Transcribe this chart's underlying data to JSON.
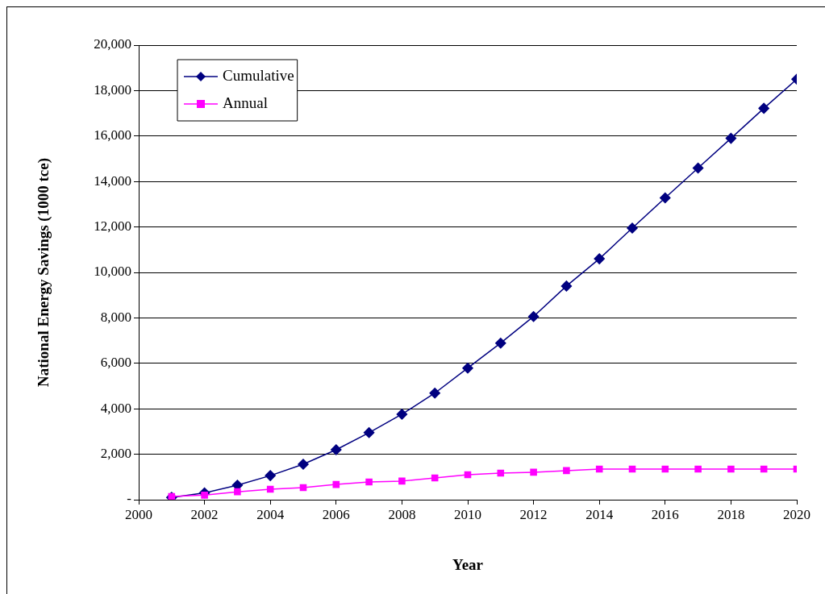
{
  "chart_data": {
    "type": "line",
    "xlabel": "Year",
    "ylabel": "National Energy Savings (1000 tce)",
    "x": [
      2001,
      2002,
      2003,
      2004,
      2005,
      2006,
      2007,
      2008,
      2009,
      2010,
      2011,
      2012,
      2013,
      2014,
      2015,
      2016,
      2017,
      2018,
      2019,
      2020
    ],
    "series": [
      {
        "name": "Cumulative",
        "color": "#000080",
        "marker": "diamond",
        "values": [
          100,
          300,
          640,
          1060,
          1560,
          2200,
          2950,
          3760,
          4690,
          5790,
          6890,
          8060,
          9400,
          10600,
          11950,
          13280,
          14590,
          15900,
          17220,
          18500
        ]
      },
      {
        "name": "Annual",
        "color": "#ff00ff",
        "marker": "square",
        "values": [
          140,
          200,
          350,
          460,
          530,
          670,
          780,
          820,
          960,
          1100,
          1170,
          1210,
          1280,
          1350,
          1350,
          1350,
          1350,
          1350,
          1350,
          1350
        ]
      }
    ],
    "xlim": [
      2000,
      2020
    ],
    "xticks": [
      2000,
      2002,
      2004,
      2006,
      2008,
      2010,
      2012,
      2014,
      2016,
      2018,
      2020
    ],
    "ylim": [
      0,
      20000
    ],
    "yticks": [
      {
        "value": 0,
        "label": "-"
      },
      {
        "value": 2000,
        "label": "2,000"
      },
      {
        "value": 4000,
        "label": "4,000"
      },
      {
        "value": 6000,
        "label": "6,000"
      },
      {
        "value": 8000,
        "label": "8,000"
      },
      {
        "value": 10000,
        "label": "10,000"
      },
      {
        "value": 12000,
        "label": "12,000"
      },
      {
        "value": 14000,
        "label": "14,000"
      },
      {
        "value": 16000,
        "label": "16,000"
      },
      {
        "value": 18000,
        "label": "18,000"
      },
      {
        "value": 20000,
        "label": "20,000"
      }
    ],
    "grid": "y",
    "legend": "top left"
  }
}
